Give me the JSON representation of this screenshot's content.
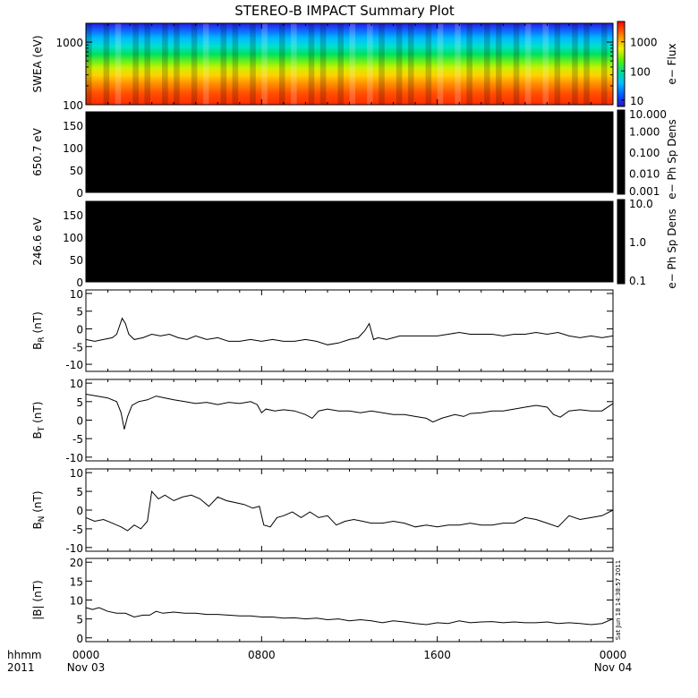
{
  "title": "STEREO-B IMPACT Summary Plot",
  "timestamp": "Sat Jun 18 14:38:57 2011",
  "x_axis": {
    "ticks": [
      "0000",
      "0800",
      "1600",
      "0000"
    ],
    "dates": [
      "Nov 03",
      "",
      "",
      "Nov 04"
    ],
    "label_top": "hhmm",
    "label_bottom": "2011",
    "range_hours": [
      0,
      24
    ]
  },
  "chart_data": [
    {
      "type": "heatmap",
      "ylabel": "SWEA (eV)",
      "yscale": "log",
      "ylim": [
        100,
        2000
      ],
      "yticks": [
        100,
        1000
      ],
      "ytick_labels": [
        "100",
        "1000"
      ],
      "colorbar": {
        "label": "e− Flux",
        "scale": "log",
        "range": [
          6,
          5000
        ],
        "ticks": [
          10,
          100,
          1000
        ],
        "tick_labels": [
          "10",
          "100",
          "1000"
        ]
      }
    },
    {
      "type": "heatmap",
      "ylabel": "650.7 eV",
      "ylim": [
        0,
        180
      ],
      "yticks": [
        0,
        50,
        100,
        150
      ],
      "ytick_labels": [
        "0",
        "50",
        "100",
        "150"
      ],
      "fill": "#000000",
      "colorbar": {
        "label": "e− Ph Sp Dens",
        "scale": "log",
        "range": [
          0.001,
          10
        ],
        "tick_labels": [
          "10.000",
          "1.000",
          "0.100",
          "0.010",
          "0.001"
        ]
      }
    },
    {
      "type": "heatmap",
      "ylabel": "246.6 eV",
      "ylim": [
        0,
        180
      ],
      "yticks": [
        0,
        50,
        100,
        150
      ],
      "ytick_labels": [
        "0",
        "50",
        "100",
        "150"
      ],
      "fill": "#000000",
      "colorbar": {
        "label": "e− Ph Sp Dens",
        "scale": "log",
        "range": [
          0.1,
          10
        ],
        "tick_labels": [
          "10.0",
          "1.0",
          "0.1"
        ]
      }
    },
    {
      "type": "line",
      "ylabel": "B",
      "ylabel_sub": "R",
      "ylabel_unit": "(nT)",
      "ylim": [
        -12,
        11
      ],
      "yticks": [
        -10,
        -5,
        0,
        5,
        10
      ],
      "x": [
        0,
        0.4,
        0.8,
        1.2,
        1.4,
        1.65,
        1.8,
        1.95,
        2.2,
        2.6,
        3.0,
        3.4,
        3.8,
        4.2,
        4.6,
        5.0,
        5.5,
        6.0,
        6.5,
        7.0,
        7.5,
        8.0,
        8.5,
        9.0,
        9.5,
        10.0,
        10.5,
        11.0,
        11.5,
        12.0,
        12.4,
        12.7,
        12.9,
        13.1,
        13.3,
        13.7,
        14.3,
        15.0,
        15.5,
        16.0,
        16.5,
        17.0,
        17.5,
        18.0,
        18.5,
        19.0,
        19.5,
        20.0,
        20.5,
        21.0,
        21.5,
        22.0,
        22.5,
        23.0,
        23.5,
        24.0
      ],
      "values": [
        -3,
        -3.5,
        -3,
        -2.5,
        -1.5,
        3,
        1.5,
        -1.5,
        -3,
        -2.5,
        -1.5,
        -2,
        -1.5,
        -2.5,
        -3,
        -2,
        -3,
        -2.5,
        -3.5,
        -3.5,
        -3,
        -3.5,
        -3,
        -3.5,
        -3.5,
        -3,
        -3.5,
        -4.5,
        -4,
        -3,
        -2.5,
        -0.5,
        1.5,
        -3,
        -2.5,
        -3,
        -2,
        -2,
        -2,
        -2,
        -1.5,
        -1,
        -1.5,
        -1.5,
        -1.5,
        -2,
        -1.5,
        -1.5,
        -1,
        -1.5,
        -1,
        -2,
        -2.5,
        -2,
        -2.5,
        -2
      ]
    },
    {
      "type": "line",
      "ylabel": "B",
      "ylabel_sub": "T",
      "ylabel_unit": "(nT)",
      "ylim": [
        -11,
        11
      ],
      "yticks": [
        -10,
        -5,
        0,
        5,
        10
      ],
      "x": [
        0,
        0.5,
        1.0,
        1.4,
        1.6,
        1.75,
        1.9,
        2.1,
        2.4,
        2.8,
        3.2,
        3.6,
        4.0,
        4.5,
        5.0,
        5.5,
        6.0,
        6.5,
        7.0,
        7.5,
        7.8,
        8.0,
        8.2,
        8.6,
        9.0,
        9.5,
        10.0,
        10.3,
        10.6,
        11.0,
        11.5,
        12.0,
        12.5,
        13.0,
        13.5,
        14.0,
        14.5,
        15.0,
        15.5,
        15.8,
        16.2,
        16.8,
        17.2,
        17.5,
        18.0,
        18.5,
        19.0,
        19.5,
        20.0,
        20.5,
        21.0,
        21.3,
        21.6,
        22.0,
        22.5,
        23.0,
        23.5,
        24.0
      ],
      "values": [
        7,
        6.5,
        6,
        5,
        2,
        -2.5,
        1,
        4,
        5,
        5.5,
        6.5,
        6,
        5.5,
        5,
        4.5,
        4.8,
        4.2,
        4.8,
        4.5,
        5,
        4.2,
        2,
        3,
        2.5,
        2.8,
        2.5,
        1.5,
        0.5,
        2.5,
        3,
        2.5,
        2.5,
        2,
        2.5,
        2,
        1.5,
        1.5,
        1,
        0.5,
        -0.5,
        0.5,
        1.5,
        1,
        1.8,
        2,
        2.5,
        2.5,
        3,
        3.5,
        4,
        3.5,
        1.5,
        0.8,
        2.5,
        2.8,
        2.5,
        2.5,
        4.5
      ]
    },
    {
      "type": "line",
      "ylabel": "B",
      "ylabel_sub": "N",
      "ylabel_unit": "(nT)",
      "ylim": [
        -11,
        11
      ],
      "yticks": [
        -10,
        -5,
        0,
        5,
        10
      ],
      "x": [
        0,
        0.4,
        0.8,
        1.2,
        1.6,
        1.9,
        2.2,
        2.5,
        2.8,
        3.0,
        3.3,
        3.6,
        4.0,
        4.4,
        4.8,
        5.2,
        5.6,
        6.0,
        6.4,
        6.8,
        7.2,
        7.6,
        7.9,
        8.1,
        8.4,
        8.7,
        9.0,
        9.4,
        9.8,
        10.2,
        10.6,
        11.0,
        11.4,
        11.8,
        12.2,
        12.6,
        13.0,
        13.5,
        14.0,
        14.5,
        15.0,
        15.5,
        16.0,
        16.5,
        17.0,
        17.5,
        18.0,
        18.5,
        19.0,
        19.5,
        20.0,
        20.5,
        21.0,
        21.5,
        22.0,
        22.5,
        23.0,
        23.5,
        24.0
      ],
      "values": [
        -2,
        -3,
        -2.5,
        -3.5,
        -4.5,
        -5.5,
        -4,
        -5,
        -3,
        5,
        3,
        4,
        2.5,
        3.5,
        4,
        3,
        1,
        3.5,
        2.5,
        2,
        1.5,
        0.5,
        1,
        -4,
        -4.5,
        -2,
        -1.5,
        -0.5,
        -2,
        -0.5,
        -2,
        -1.5,
        -4,
        -3,
        -2.5,
        -3,
        -3.5,
        -3.5,
        -3,
        -3.5,
        -4.5,
        -4,
        -4.5,
        -4,
        -4,
        -3.5,
        -4,
        -4,
        -3.5,
        -3.5,
        -2,
        -2.5,
        -3.5,
        -4.5,
        -1.5,
        -2.5,
        -2,
        -1.5,
        0
      ]
    },
    {
      "type": "line",
      "ylabel": "|B|",
      "ylabel_unit": "(nT)",
      "ylim": [
        -1,
        21
      ],
      "yticks": [
        0,
        5,
        10,
        15,
        20
      ],
      "x": [
        0,
        0.3,
        0.6,
        1.0,
        1.4,
        1.8,
        2.2,
        2.6,
        2.9,
        3.2,
        3.5,
        4.0,
        4.5,
        5.0,
        5.5,
        6.0,
        6.5,
        7.0,
        7.5,
        8.0,
        8.5,
        9.0,
        9.5,
        10.0,
        10.5,
        11.0,
        11.5,
        12.0,
        12.5,
        13.0,
        13.5,
        14.0,
        14.5,
        15.0,
        15.5,
        16.0,
        16.5,
        17.0,
        17.5,
        18.0,
        18.5,
        19.0,
        19.5,
        20.0,
        20.5,
        21.0,
        21.5,
        22.0,
        22.5,
        23.0,
        23.5,
        24.0
      ],
      "values": [
        8,
        7.5,
        8,
        7,
        6.5,
        6.5,
        5.5,
        6,
        6,
        7,
        6.5,
        6.8,
        6.5,
        6.5,
        6.2,
        6.2,
        6,
        5.8,
        5.8,
        5.5,
        5.5,
        5.2,
        5.3,
        5,
        5.2,
        4.8,
        5,
        4.5,
        4.8,
        4.5,
        4,
        4.5,
        4.2,
        3.8,
        3.5,
        4,
        3.8,
        4.5,
        4,
        4.2,
        4.3,
        4,
        4.2,
        4,
        4,
        4.2,
        3.8,
        4,
        3.8,
        3.5,
        3.8,
        5
      ]
    }
  ]
}
